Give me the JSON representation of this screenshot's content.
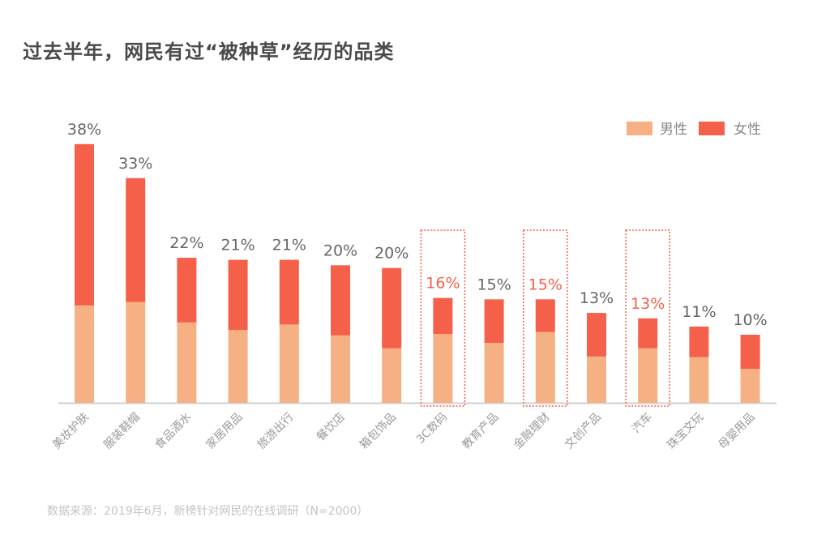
{
  "title": "过去半年，网民有过“被种草”经历的品类",
  "footer": "数据来源：2019年6月，新榜针对网民的在线调研（N=2000）",
  "colors": {
    "male": "#F5B183",
    "female": "#F4604A",
    "highlight": "#F4604A",
    "label": "#666666"
  },
  "chart_data": {
    "type": "bar",
    "stacked": true,
    "title": "过去半年，网民有过“被种草”经历的品类",
    "legend_placement": "top-right",
    "grid": false,
    "ylim": [
      0,
      40
    ],
    "categories": [
      "美妆护肤",
      "服装鞋帽",
      "食品酒水",
      "家居用品",
      "旅游出行",
      "餐饮店",
      "箱包饰品",
      "3C数码",
      "教育产品",
      "金融理财",
      "文创产品",
      "汽车",
      "珠宝文玩",
      "母婴用品"
    ],
    "total_labels": [
      "38%",
      "33%",
      "22%",
      "21%",
      "21%",
      "20%",
      "20%",
      "16%",
      "15%",
      "15%",
      "13%",
      "13%",
      "11%",
      "10%"
    ],
    "highlighted": [
      "3C数码",
      "金融理财",
      "汽车"
    ],
    "series": [
      {
        "name": "男性",
        "values": [
          14.3,
          14.8,
          11.8,
          10.7,
          11.5,
          9.9,
          8.0,
          10.1,
          8.8,
          10.4,
          6.8,
          8.0,
          6.7,
          5.0
        ]
      },
      {
        "name": "女性",
        "values": [
          23.7,
          18.2,
          9.5,
          10.3,
          9.5,
          10.3,
          11.8,
          5.3,
          6.4,
          4.8,
          6.4,
          4.4,
          4.5,
          5.0
        ]
      }
    ]
  }
}
